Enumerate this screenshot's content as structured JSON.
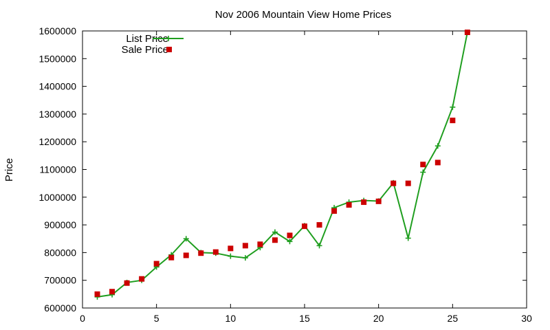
{
  "chart_data": {
    "type": "line",
    "title": "Nov 2006 Mountain View Home Prices",
    "xlabel": "",
    "ylabel": "Price",
    "xlim": [
      0,
      30
    ],
    "ylim": [
      600000,
      1600000
    ],
    "x_ticks": [
      0,
      5,
      10,
      15,
      20,
      25,
      30
    ],
    "y_ticks": [
      600000,
      700000,
      800000,
      900000,
      1000000,
      1100000,
      1200000,
      1300000,
      1400000,
      1500000,
      1600000
    ],
    "grid": false,
    "legend_position": "top-left",
    "series": [
      {
        "name": "List Price",
        "style": "line-with-plus-markers",
        "color": "#1f9e1f",
        "x": [
          1,
          2,
          3,
          4,
          5,
          6,
          7,
          8,
          9,
          10,
          11,
          12,
          13,
          14,
          15,
          16,
          17,
          18,
          19,
          20,
          21,
          22,
          23,
          24,
          25,
          26
        ],
        "values": [
          640000,
          648000,
          692000,
          700000,
          748000,
          792000,
          850000,
          800000,
          798000,
          787000,
          781000,
          818000,
          874000,
          840000,
          897000,
          825000,
          962000,
          982000,
          988000,
          986000,
          1052000,
          852000,
          1090000,
          1185000,
          1325000,
          1595000
        ]
      },
      {
        "name": "Sale Price",
        "style": "square-markers",
        "color": "#cc0000",
        "x": [
          1,
          2,
          3,
          4,
          5,
          6,
          7,
          8,
          9,
          10,
          11,
          12,
          13,
          14,
          15,
          16,
          17,
          18,
          19,
          20,
          21,
          22,
          23,
          24,
          25,
          26
        ],
        "values": [
          650000,
          659000,
          690000,
          705000,
          760000,
          782000,
          790000,
          798000,
          802000,
          815000,
          825000,
          830000,
          845000,
          862000,
          895000,
          900000,
          950000,
          972000,
          982000,
          985000,
          1050000,
          1050000,
          1118000,
          1125000,
          1277000,
          1595000
        ]
      }
    ]
  }
}
